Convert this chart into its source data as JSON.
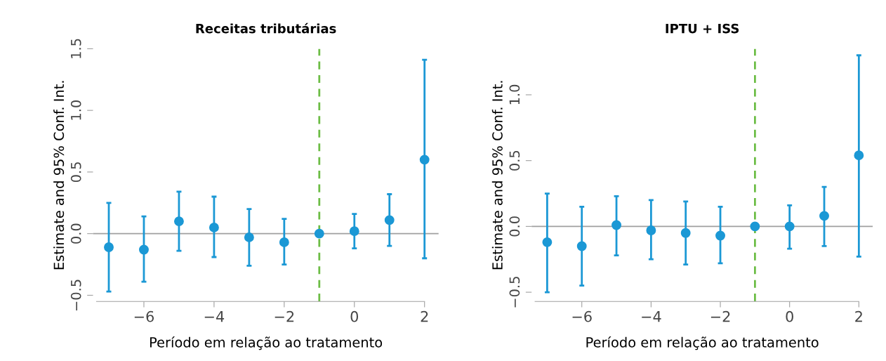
{
  "chart_data": [
    {
      "type": "scatter",
      "title": "Receitas tributárias",
      "xlabel": "Período em relação ao tratamento",
      "ylabel": "Estimate and 95% Conf. Int.",
      "x": [
        -7,
        -6,
        -5,
        -4,
        -3,
        -2,
        -1,
        0,
        1,
        2
      ],
      "series": [
        {
          "color": "#1b98d5",
          "values": [
            -0.11,
            -0.13,
            0.1,
            0.05,
            -0.03,
            -0.07,
            0,
            0.02,
            0.11,
            0.6
          ],
          "errors": [
            [
              -0.47,
              0.25
            ],
            [
              -0.39,
              0.14
            ],
            [
              -0.14,
              0.34
            ],
            [
              -0.19,
              0.3
            ],
            [
              -0.26,
              0.2
            ],
            [
              -0.25,
              0.12
            ],
            null,
            [
              -0.12,
              0.16
            ],
            [
              -0.1,
              0.32
            ],
            [
              -0.2,
              1.41
            ]
          ]
        }
      ],
      "xlim": [
        -7.45,
        2.4
      ],
      "xticks": [
        {
          "value": -6,
          "label": "−6"
        },
        {
          "value": -4,
          "label": "−4"
        },
        {
          "value": -2,
          "label": "−2"
        },
        {
          "value": 0,
          "label": "0"
        },
        {
          "value": 2,
          "label": "2"
        }
      ],
      "ylim": [
        -0.55,
        1.5
      ],
      "yticks": [
        {
          "value": -0.5,
          "label": "−0.5"
        },
        {
          "value": 0,
          "label": "0.0"
        },
        {
          "value": 0.5,
          "label": "0.5"
        },
        {
          "value": 1,
          "label": "1.0"
        },
        {
          "value": 1.5,
          "label": "1.5"
        }
      ],
      "ref_lines": [
        {
          "axis": "y",
          "value": 0,
          "color": "#a0a0a0",
          "line_style": "solid"
        },
        {
          "axis": "x",
          "value": -1,
          "color": "#6cbd45",
          "line_style": "dashed"
        }
      ],
      "marker": "circle",
      "grid": false,
      "legend": false
    },
    {
      "type": "scatter",
      "title": "IPTU + ISS",
      "xlabel": "Período em relação ao tratamento",
      "ylabel": "Estimate and 95% Conf. Int.",
      "x": [
        -7,
        -6,
        -5,
        -4,
        -3,
        -2,
        -1,
        0,
        1,
        2
      ],
      "series": [
        {
          "color": "#1b98d5",
          "values": [
            -0.12,
            -0.15,
            0.01,
            -0.03,
            -0.05,
            -0.07,
            0,
            0,
            0.08,
            0.54
          ],
          "errors": [
            [
              -0.5,
              0.25
            ],
            [
              -0.45,
              0.15
            ],
            [
              -0.22,
              0.23
            ],
            [
              -0.25,
              0.2
            ],
            [
              -0.29,
              0.19
            ],
            [
              -0.28,
              0.15
            ],
            null,
            [
              -0.17,
              0.16
            ],
            [
              -0.15,
              0.3
            ],
            [
              -0.23,
              1.3
            ]
          ]
        }
      ],
      "xlim": [
        -7.45,
        2.4
      ],
      "xticks": [
        {
          "value": -6,
          "label": "−6"
        },
        {
          "value": -4,
          "label": "−4"
        },
        {
          "value": -2,
          "label": "−2"
        },
        {
          "value": 0,
          "label": "0"
        },
        {
          "value": 2,
          "label": "2"
        }
      ],
      "ylim": [
        -0.57,
        1.35
      ],
      "yticks": [
        {
          "value": -0.5,
          "label": "−0.5"
        },
        {
          "value": 0,
          "label": "0.0"
        },
        {
          "value": 0.5,
          "label": "0.5"
        },
        {
          "value": 1,
          "label": "1.0"
        }
      ],
      "ref_lines": [
        {
          "axis": "y",
          "value": 0,
          "color": "#a0a0a0",
          "line_style": "solid"
        },
        {
          "axis": "x",
          "value": -1,
          "color": "#6cbd45",
          "line_style": "dashed"
        }
      ],
      "marker": "circle",
      "grid": false,
      "legend": false
    }
  ]
}
